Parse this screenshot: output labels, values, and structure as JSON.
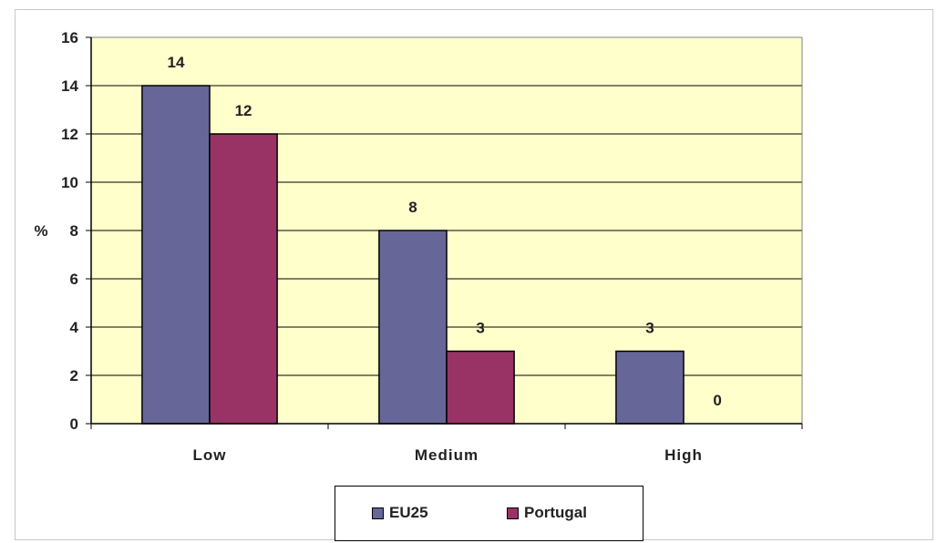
{
  "chart_data": {
    "type": "bar",
    "title": "",
    "xlabel": "",
    "ylabel": "%",
    "ylim": [
      0,
      16
    ],
    "yticks": [
      0,
      2,
      4,
      6,
      8,
      10,
      12,
      14,
      16
    ],
    "grid": true,
    "legend_position": "bottom",
    "plot_background": "#FFFFCC",
    "categories": [
      "Low",
      "Medium",
      "High"
    ],
    "series": [
      {
        "name": "EU25",
        "values": [
          14,
          8,
          3
        ],
        "color": "#666699"
      },
      {
        "name": "Portugal",
        "values": [
          12,
          3,
          0
        ],
        "color": "#993366"
      }
    ]
  }
}
